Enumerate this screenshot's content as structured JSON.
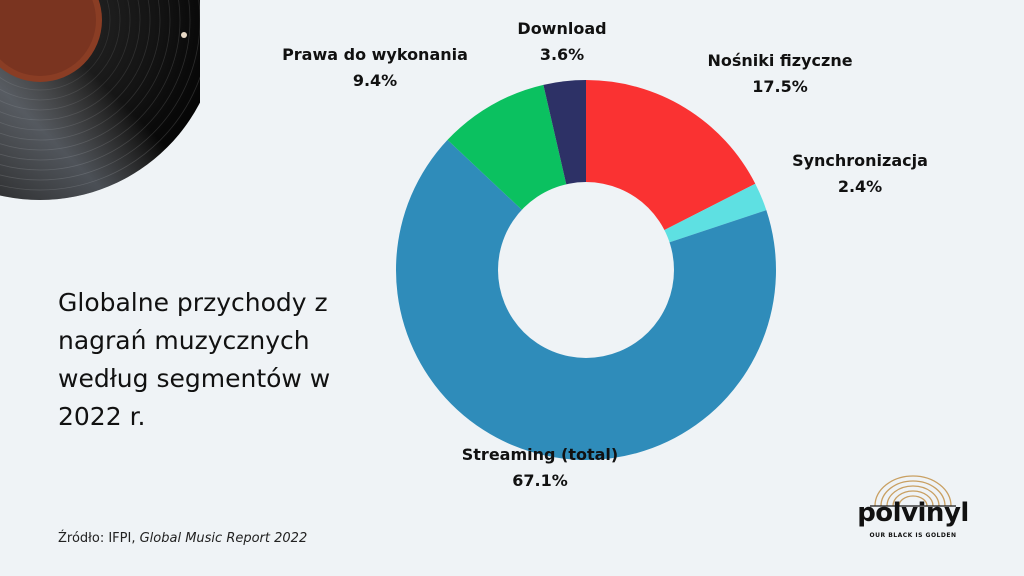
{
  "colors": {
    "background": "#eff3f6",
    "nosniki": "#fa3232",
    "synchronizacja": "#5ee0e2",
    "streaming": "#2f8cba",
    "prawa": "#0bc160",
    "download": "#2d3166"
  },
  "chart_data": {
    "type": "pie",
    "title": "Globalne przychody z nagrań muzycznych według segmentów w 2022 r.",
    "slices": [
      {
        "label": "Nośniki fizyczne",
        "value": 17.5,
        "value_text": "17.5%",
        "color": "#fa3232"
      },
      {
        "label": "Synchronizacja",
        "value": 2.4,
        "value_text": "2.4%",
        "color": "#5ee0e2"
      },
      {
        "label": "Streaming (total)",
        "value": 67.1,
        "value_text": "67.1%",
        "color": "#2f8cba"
      },
      {
        "label": "Prawa do wykonania",
        "value": 9.4,
        "value_text": "9.4%",
        "color": "#0bc160"
      },
      {
        "label": "Download",
        "value": 3.6,
        "value_text": "3.6%",
        "color": "#2d3166"
      }
    ]
  },
  "source": {
    "prefix": "Źródło: IFPI, ",
    "title": "Global Music Report 2022"
  },
  "logo": {
    "word": "polvinyl",
    "tagline": "OUR BLACK IS GOLDEN"
  }
}
